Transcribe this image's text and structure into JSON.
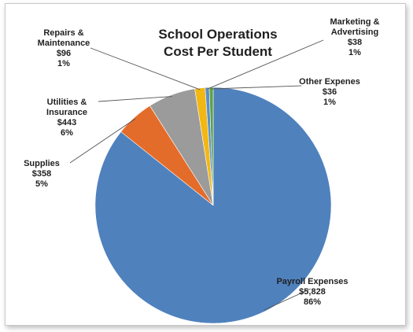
{
  "chart_data": {
    "type": "pie",
    "title": [
      "School Operations",
      "Cost Per Student"
    ],
    "start_angle_deg": 0,
    "direction": "clockwise",
    "slices": [
      {
        "name": "Payroll Expenses",
        "value": 5828,
        "value_label": "$5,828",
        "pct_label": "86%",
        "color": "#4F81BD",
        "label_lines": [
          "Payroll Expenses"
        ]
      },
      {
        "name": "Supplies",
        "value": 358,
        "value_label": "$358",
        "pct_label": "5%",
        "color": "#E46C2A",
        "label_lines": [
          "Supplies"
        ]
      },
      {
        "name": "Utilities & Insurance",
        "value": 443,
        "value_label": "$443",
        "pct_label": "6%",
        "color": "#9B9B9B",
        "label_lines": [
          "Utilities &",
          "Insurance"
        ]
      },
      {
        "name": "Repairs & Maintenance",
        "value": 96,
        "value_label": "$96",
        "pct_label": "1%",
        "color": "#F2B712",
        "label_lines": [
          "Repairs &",
          "Maintenance"
        ]
      },
      {
        "name": "Marketing & Advertising",
        "value": 38,
        "value_label": "$38",
        "pct_label": "1%",
        "color": "#5B8FC9",
        "label_lines": [
          "Marketing &",
          "Advertising"
        ]
      },
      {
        "name": "Other Expenes",
        "value": 36,
        "value_label": "$36",
        "pct_label": "1%",
        "color": "#5FA343",
        "label_lines": [
          "Other Expenes"
        ]
      }
    ]
  }
}
